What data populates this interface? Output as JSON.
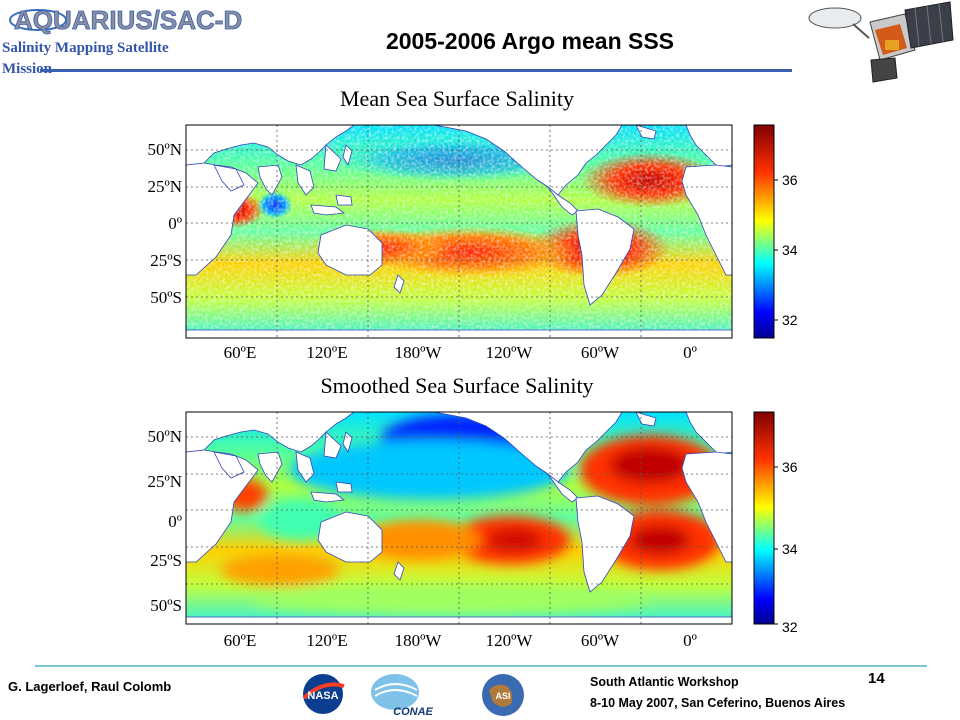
{
  "header": {
    "logo_text": "AQUARIUS/SAC-D",
    "mission_line1": "Salinity Mapping Satellite",
    "mission_line2": "Mission",
    "slide_title": "2005-2006 Argo mean SSS"
  },
  "maps": [
    {
      "title": "Mean Sea Surface Salinity",
      "y_ticks": [
        "50ºN",
        "25ºN",
        "0º",
        "25ºS",
        "50ºS"
      ],
      "x_ticks": [
        "60ºE",
        "120ºE",
        "180ºW",
        "120ºW",
        "60ºW",
        "0º"
      ],
      "colorbar_ticks": [
        "36",
        "34",
        "32"
      ]
    },
    {
      "title": "Smoothed Sea Surface Salinity",
      "y_ticks": [
        "50ºN",
        "25ºN",
        "0º",
        "25ºS",
        "50ºS"
      ],
      "x_ticks": [
        "60ºE",
        "120ºE",
        "180ºW",
        "120ºW",
        "60ºW",
        "0º"
      ],
      "colorbar_ticks": [
        "36",
        "34",
        "32"
      ]
    }
  ],
  "footer": {
    "author": "G. Lagerloef, Raul Colomb",
    "workshop": "South Atlantic Workshop",
    "page_number": "14",
    "dates_location": "8-10 May 2007, San Ceferino, Buenos Aires",
    "logos": [
      "NASA",
      "CONAE",
      "ASI"
    ]
  },
  "colors": {
    "accent_blue": "#3a5fb0",
    "footer_rule": "#7cc8d0",
    "mission_text": "#3355aa"
  }
}
